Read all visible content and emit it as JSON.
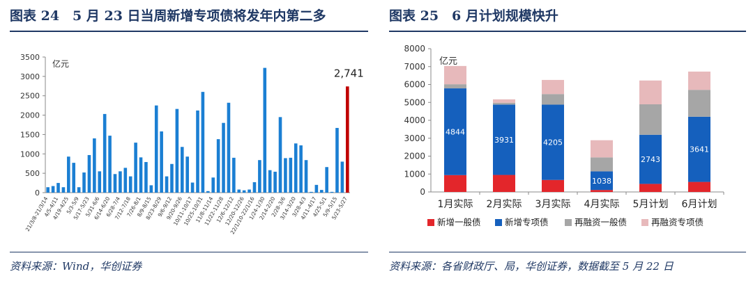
{
  "left": {
    "title": "图表 24　5 月 23 日当周新增专项债将发年内第二多",
    "source": "资料来源：Wind，华创证券",
    "chart_data": {
      "type": "bar",
      "ylabel": "亿元",
      "ylim": [
        0,
        3500
      ],
      "yticks": [
        0,
        500,
        1000,
        1500,
        2000,
        2500,
        3000,
        3500
      ],
      "highlight_label": "2,741",
      "tick_labels": [
        "21/3/8-21/3/14",
        "4/5-4/11",
        "4/19-4/25",
        "5/3-5/9",
        "5/17-5/23",
        "5/31-6/6",
        "6/14-6/20",
        "6/28-7/4",
        "7/12-7/18",
        "7/26-8/1",
        "8/9-8/15",
        "8/23-8/29",
        "9/6-9/12",
        "9/20-9/26",
        "10/11-10/17",
        "10/25-10/31",
        "11/8-11/14",
        "11/22-11/28",
        "12/6-12/12",
        "12/20-12/26",
        "22/1/10-22/1/16",
        "1/24-1/30",
        "2/14-2/20",
        "2/28-3/6",
        "3/14-3/20",
        "3/28-4/3",
        "4/11-4/17",
        "4/25-5/1",
        "5/9-5/15",
        "5/23-5/27"
      ],
      "values": [
        140,
        170,
        250,
        140,
        930,
        770,
        140,
        520,
        970,
        1400,
        550,
        2030,
        1470,
        480,
        550,
        640,
        420,
        1290,
        910,
        790,
        190,
        2250,
        1580,
        420,
        740,
        2160,
        1180,
        930,
        260,
        2120,
        2600,
        40,
        390,
        1380,
        1800,
        2320,
        900,
        80,
        60,
        80,
        270,
        840,
        3220,
        580,
        540,
        1950,
        890,
        900,
        1270,
        1220,
        840,
        20,
        200,
        70,
        660,
        20,
        1670,
        800,
        2741
      ],
      "highlight_index": 58
    }
  },
  "right": {
    "title": "图表 25　6 月计划规模快升",
    "source": "资料来源：各省财政厅、局，华创证券，数据截至 5 月 22 日",
    "chart_data": {
      "type": "bar",
      "stacked": true,
      "ylabel": "亿元",
      "ylim": [
        0,
        8000
      ],
      "yticks": [
        0,
        1000,
        2000,
        3000,
        4000,
        5000,
        6000,
        7000,
        8000
      ],
      "categories": [
        "1月实际",
        "2月实际",
        "3月实际",
        "4月实际",
        "5月计划",
        "6月计划"
      ],
      "series": [
        {
          "name": "新增一般债",
          "color": "#e3262b",
          "values": [
            940,
            950,
            670,
            110,
            450,
            560
          ]
        },
        {
          "name": "新增专项债",
          "color": "#1560bd",
          "values": [
            4844,
            3931,
            4205,
            1038,
            2743,
            3641
          ]
        },
        {
          "name": "再融资一般债",
          "color": "#a6a6a6",
          "values": [
            230,
            100,
            590,
            780,
            1700,
            1500
          ]
        },
        {
          "name": "再融资专项债",
          "color": "#e7b9bb",
          "values": [
            1020,
            190,
            790,
            960,
            1330,
            1020
          ]
        }
      ],
      "labeled_series": "新增专项债"
    }
  }
}
